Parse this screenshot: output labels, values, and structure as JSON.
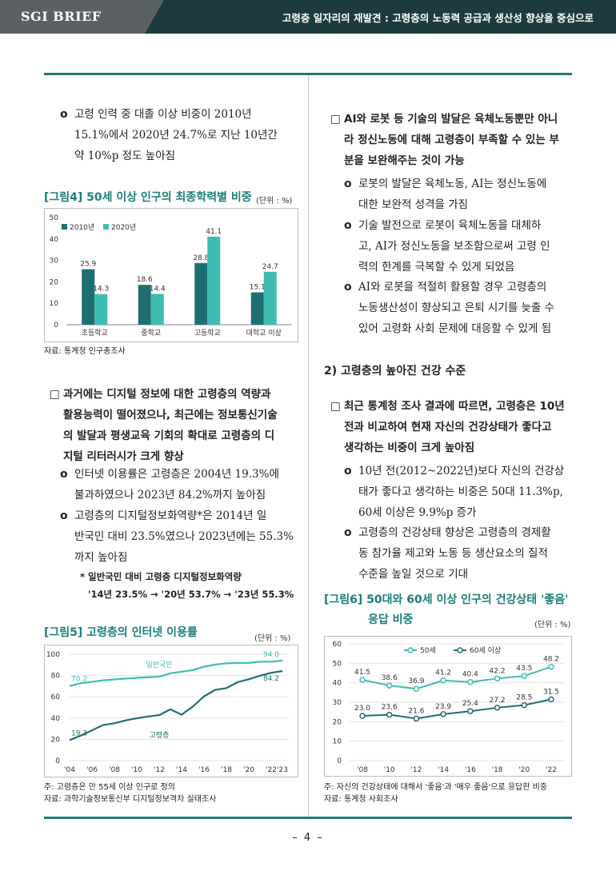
{
  "header": {
    "brand": "SGI BRIEF",
    "title": "고령층 일자리의 재발견 : 고령층의 노동력 공급과 생산성 향상을 중심으로"
  },
  "left": {
    "intro_lines": [
      "고령 인력 중 대졸 이상 비중이 2010년",
      "15.1%에서 2020년 24.7%로 지난 10년간",
      "약 10%p 정도 높아짐"
    ],
    "fig4": {
      "title": "[그림4] 50세 이상 인구의 최종학력별 비중",
      "unit": "(단위 : %)",
      "source": "자료: 통계청 인구총조사"
    },
    "digital_lines": [
      "과거에는 디지털 정보에 대한 고령층의 역량과",
      "활용능력이 떨어졌으나, 최근에는 정보통신기술",
      "의 발달과 평생교육 기회의 확대로 고령층의 디",
      "지털 리터러시가 크게 향상"
    ],
    "sub1_lines": [
      "인터넷 이용률은 고령층은 2004년 19.3%에",
      "불과하였으나 2023년 84.2%까지 높아짐"
    ],
    "sub2_lines": [
      "고령층의 디지털정보화역량*은 2014년 일",
      "반국민 대비 23.5%였으나 2023년에는 55.3%",
      "까지 높아짐"
    ],
    "footnote_lines": [
      "* 일반국민 대비 고령층 디지털정보화역량",
      "'14년 23.5% → '20년 53.7% → '23년 55.3%"
    ],
    "fig5": {
      "title": "[그림5] 고령층의 인터넷 이용률",
      "unit": "(단위 : %)",
      "note": "주: 고령층은 만 55세 이상 인구로 정의",
      "source": "자료: 과학기술정보통신부 디지털정보격차 실태조사"
    }
  },
  "right": {
    "ai_lines": [
      "AI와 로봇 등 기술의 발달은 육체노동뿐만 아니",
      "라 정신노동에 대해 고령층이 부족할 수 있는 부",
      "분을 보완해주는 것이 가능"
    ],
    "ai1_lines": [
      "로봇의 발달은 육체노동, AI는 정신노동에",
      "대한 보완적 성격을 가짐"
    ],
    "ai2_lines": [
      "기술 발전으로 로봇이 육체노동을 대체하",
      "고, AI가 정신노동을 보조함으로써 고령 인",
      "력의 한계를 극복할 수 있게 되었음"
    ],
    "ai3_lines": [
      "AI와 로봇을 적절히 활용할 경우 고령층의",
      "노동생산성이 향상되고 은퇴 시기를 늦출 수",
      "있어 고령화 사회 문제에 대응할 수 있게 됨"
    ],
    "section_title": "2) 고령층의 높아진 건강 수준",
    "health_lines": [
      "최근 통계청 조사 결과에 따르면, 고령층은 10년",
      "전과 비교하여 현재 자신의 건강상태가 좋다고",
      "생각하는 비중이 크게 높아짐"
    ],
    "h1_lines": [
      "10년 전(2012~2022년)보다 자신의 건강상",
      "태가 좋다고 생각하는 비중은 50대 11.3%p,",
      "60세 이상은 9.9%p 증가"
    ],
    "h2_lines": [
      "고령층의 건강상태 향상은 고령층의 경제활",
      "동 참가율 제고와 노동 등 생산요소의 질적",
      "수준을 높일 것으로 기대"
    ],
    "fig6": {
      "title_lines": [
        "[그림6] 50대와 60세 이상 인구의 건강상태 '좋음'",
        "응답 비중"
      ],
      "unit": "(단위 : %)",
      "note": "주: 자신의 건강상태에 대해서 '좋음'과 '매우 좋음'으로 응답한 비중",
      "source": "자료: 통계청 사회조사"
    }
  },
  "page_number": "– 4 –",
  "bullet_square": "□",
  "bullet_circle": "o",
  "chart_data": [
    {
      "type": "bar",
      "categories": [
        "초등학교",
        "중학교",
        "고등학교",
        "대학교 이상"
      ],
      "series": [
        {
          "name": "2010년",
          "values": [
            25.9,
            18.6,
            28.8,
            15.1
          ],
          "color": "#1f6f72"
        },
        {
          "name": "2020년",
          "values": [
            14.3,
            14.4,
            41.1,
            24.7
          ],
          "color": "#3fbcb4"
        }
      ],
      "ylim": [
        0,
        50
      ],
      "yticks": [
        0,
        10,
        20,
        30,
        40,
        50
      ],
      "legend": "top-left",
      "grid": false
    },
    {
      "type": "line",
      "x": [
        2004,
        2005,
        2006,
        2007,
        2008,
        2009,
        2010,
        2011,
        2012,
        2013,
        2014,
        2015,
        2016,
        2017,
        2018,
        2019,
        2020,
        2021,
        2022,
        2023
      ],
      "xticks": [
        "'04",
        "'06",
        "'08",
        "'10",
        "'12",
        "'14",
        "'16",
        "'18",
        "'20",
        "'22'23"
      ],
      "xtick_years": [
        2004,
        2006,
        2008,
        2010,
        2012,
        2014,
        2016,
        2018,
        2020,
        2022.5
      ],
      "series": [
        {
          "name": "일반국민",
          "values": [
            70.2,
            72.8,
            74.1,
            75.5,
            76.3,
            77.1,
            77.8,
            78.4,
            78.9,
            82.1,
            83.6,
            85.1,
            88.3,
            90.3,
            91.5,
            91.8,
            91.9,
            93.0,
            93.0,
            94.0
          ],
          "color": "#3fbcb4",
          "first_label": "70.2",
          "last_label": "94.0"
        },
        {
          "name": "고령층",
          "values": [
            19.3,
            23.5,
            28.5,
            33.5,
            35.1,
            37.8,
            39.8,
            41.5,
            42.8,
            48.2,
            43.2,
            50.8,
            60.4,
            66.5,
            68.2,
            73.8,
            76.5,
            79.8,
            82.6,
            84.2
          ],
          "color": "#1f6f72",
          "first_label": "19.3",
          "last_label": "84.2"
        }
      ],
      "ylim": [
        0,
        100
      ],
      "yticks": [
        0,
        20,
        40,
        60,
        80,
        100
      ],
      "grid": true
    },
    {
      "type": "line",
      "x": [
        "'08",
        "'10",
        "'12",
        "'14",
        "'16",
        "'18",
        "'20",
        "'22"
      ],
      "series": [
        {
          "name": "50세",
          "values": [
            41.5,
            38.6,
            36.9,
            41.2,
            40.4,
            42.2,
            43.5,
            48.2
          ],
          "labels": [
            "41.5",
            "38.6",
            "36.9",
            "41.2",
            "40.4",
            "42.2",
            "43.5",
            "48.2"
          ],
          "color": "#3fbcb4"
        },
        {
          "name": "60세 이상",
          "values": [
            23.0,
            23.6,
            21.6,
            23.9,
            25.4,
            27.2,
            28.5,
            31.5
          ],
          "labels": [
            "23.0",
            "23.6",
            "21.6",
            "23.9",
            "25.4",
            "27.2",
            "28.5",
            "31.5"
          ],
          "color": "#1f6f72"
        }
      ],
      "ylim": [
        0,
        60
      ],
      "yticks": [
        0,
        10,
        20,
        30,
        40,
        50,
        60
      ],
      "legend": "top",
      "grid": true
    }
  ]
}
